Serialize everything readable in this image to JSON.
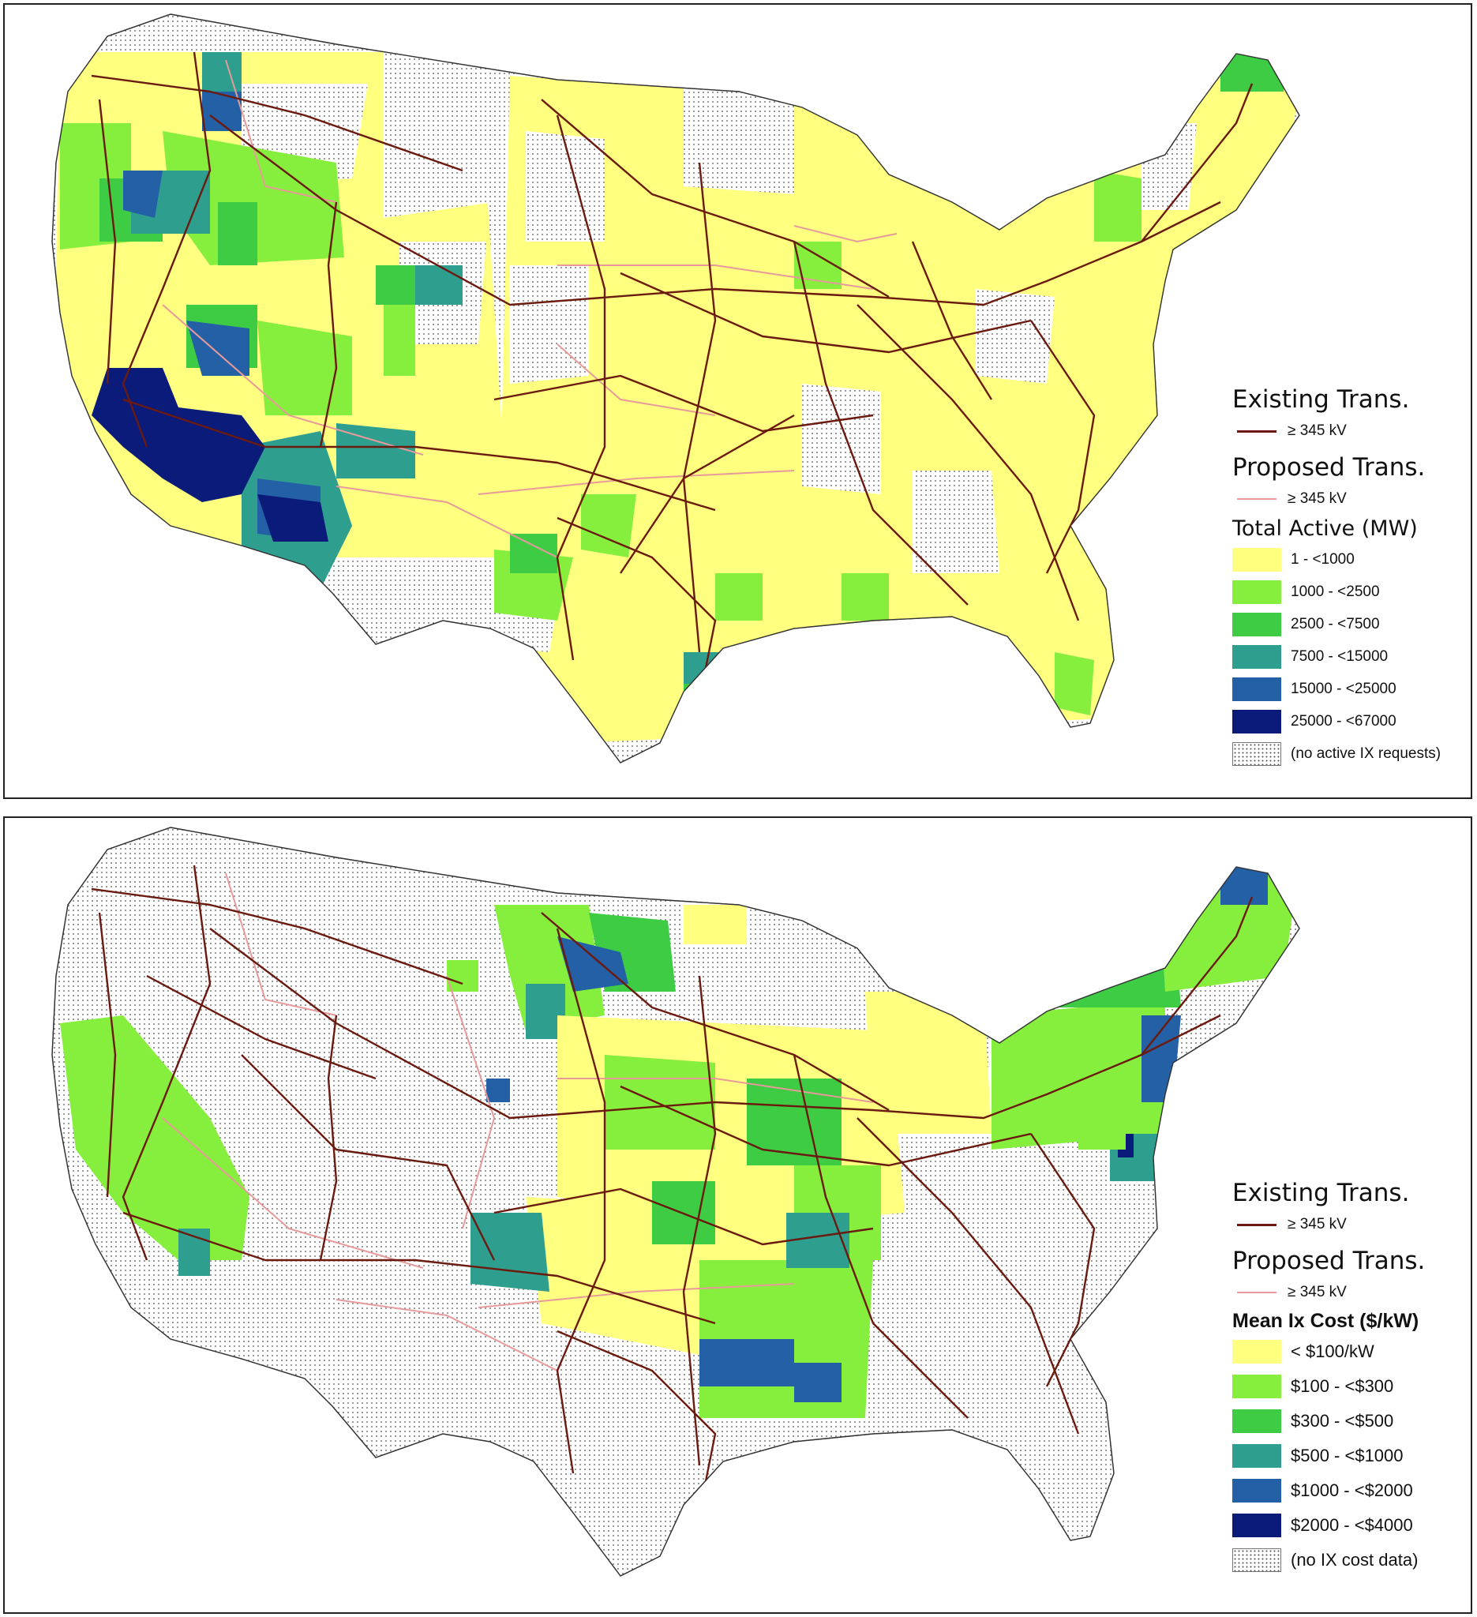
{
  "colors": {
    "c1": "#ffff80",
    "c2": "#86ee3c",
    "c3": "#3dcc44",
    "c4": "#2e9e8f",
    "c5": "#2360a6",
    "c6": "#0b1b7a",
    "existing_line": "#6b1a0f",
    "proposed_line": "#e89a9a",
    "no_data": "dotted-white"
  },
  "top_map": {
    "legend": {
      "existing_title": "Existing Trans.",
      "existing_label": "≥ 345 kV",
      "proposed_title": "Proposed Trans.",
      "proposed_label": "≥ 345 kV",
      "scale_title": "Total Active (MW)",
      "classes": [
        {
          "label": "1 - <1000",
          "color": "#ffff80"
        },
        {
          "label": "1000 - <2500",
          "color": "#86ee3c"
        },
        {
          "label": "2500 - <7500",
          "color": "#3dcc44"
        },
        {
          "label": "7500 - <15000",
          "color": "#2e9e8f"
        },
        {
          "label": "15000 - <25000",
          "color": "#2360a6"
        },
        {
          "label": "25000 - <67000",
          "color": "#0b1b7a"
        }
      ],
      "no_data_label": "(no active IX requests)"
    }
  },
  "bottom_map": {
    "legend": {
      "existing_title": "Existing Trans.",
      "existing_label": "≥ 345 kV",
      "proposed_title": "Proposed Trans.",
      "proposed_label": "≥ 345 kV",
      "scale_title": "Mean Ix Cost ($/kW)",
      "classes": [
        {
          "label": "< $100/kW",
          "color": "#ffff80"
        },
        {
          "label": "$100 - <$300",
          "color": "#86ee3c"
        },
        {
          "label": "$300 - <$500",
          "color": "#3dcc44"
        },
        {
          "label": "$500 - <$1000",
          "color": "#2e9e8f"
        },
        {
          "label": "$1000 - <$2000",
          "color": "#2360a6"
        },
        {
          "label": "$2000 - <$4000",
          "color": "#0b1b7a"
        }
      ],
      "no_data_label": "(no IX cost data)"
    }
  }
}
